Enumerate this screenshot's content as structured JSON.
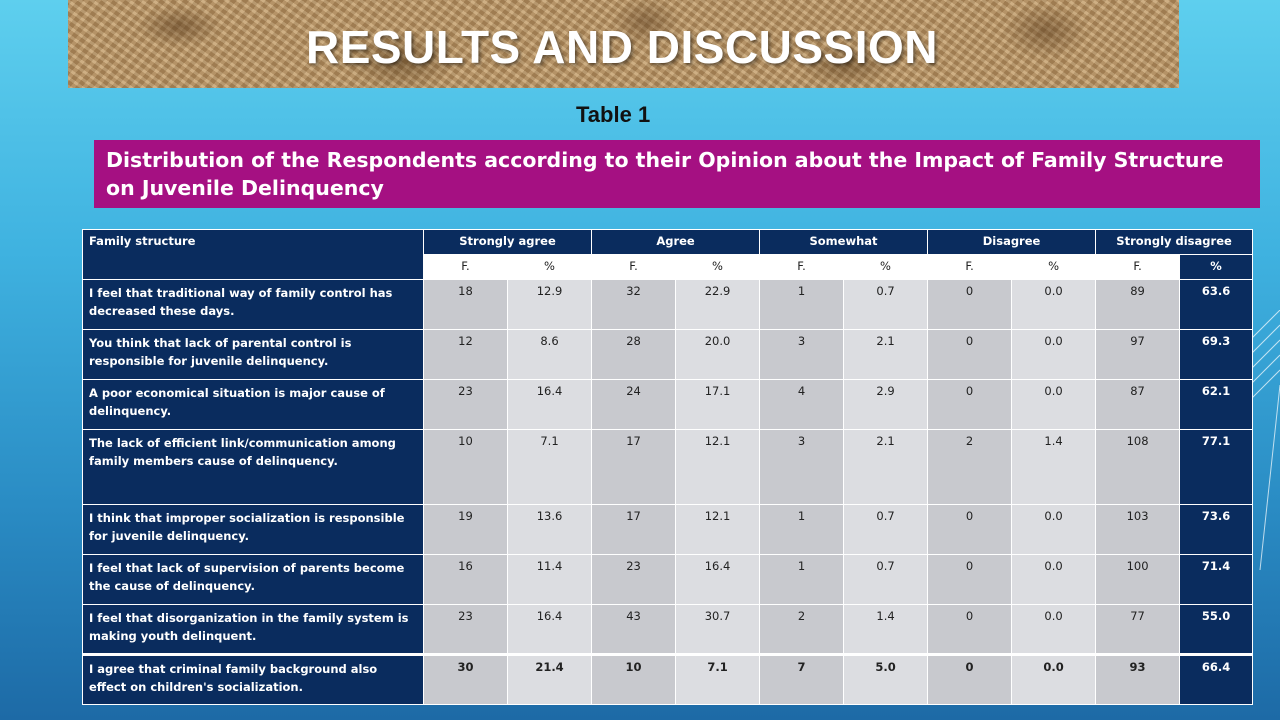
{
  "slide": {
    "title": "RESULTS AND DISCUSSION",
    "table_label": "Table 1",
    "caption": "Distribution of the Respondents according to their Opinion about the Impact of Family Structure on Juvenile Delinquency"
  },
  "table": {
    "headers": [
      "Family structure",
      "Strongly agree",
      "Agree",
      "Somewhat",
      "Disagree",
      "Strongly disagree"
    ],
    "subheaders": [
      "F.",
      "%",
      "F.",
      "%",
      "F.",
      "%",
      "F.",
      "%",
      "F.",
      "%"
    ],
    "rows": [
      {
        "label": "I feel that traditional way of family control has decreased these days.",
        "values": [
          "18",
          "12.9",
          "32",
          "22.9",
          "1",
          "0.7",
          "0",
          "0.0",
          "89",
          "63.6"
        ]
      },
      {
        "label": "You think that lack of parental control is responsible for juvenile delinquency.",
        "values": [
          "12",
          "8.6",
          "28",
          "20.0",
          "3",
          "2.1",
          "0",
          "0.0",
          "97",
          "69.3"
        ]
      },
      {
        "label": "A poor economical situation is major cause of delinquency.",
        "values": [
          "23",
          "16.4",
          "24",
          "17.1",
          "4",
          "2.9",
          "0",
          "0.0",
          "87",
          "62.1"
        ]
      },
      {
        "label": "The lack of efficient link/communication among family members cause of delinquency.",
        "values": [
          "10",
          "7.1",
          "17",
          "12.1",
          "3",
          "2.1",
          "2",
          "1.4",
          "108",
          "77.1"
        ]
      },
      {
        "label": "I think that improper socialization is responsible for juvenile delinquency.",
        "values": [
          "19",
          "13.6",
          "17",
          "12.1",
          "1",
          "0.7",
          "0",
          "0.0",
          "103",
          "73.6"
        ]
      },
      {
        "label": "I feel that lack of supervision of parents become the cause of delinquency.",
        "values": [
          "16",
          "11.4",
          "23",
          "16.4",
          "1",
          "0.7",
          "0",
          "0.0",
          "100",
          "71.4"
        ]
      },
      {
        "label": "I feel that disorganization in the family system is making youth delinquent.",
        "values": [
          "23",
          "16.4",
          "43",
          "30.7",
          "2",
          "1.4",
          "0",
          "0.0",
          "77",
          "55.0"
        ]
      },
      {
        "label": "I agree that criminal family background also effect on children's socialization.",
        "values": [
          "30",
          "21.4",
          "10",
          "7.1",
          "7",
          "5.0",
          "0",
          "0.0",
          "93",
          "66.4"
        ]
      }
    ]
  }
}
